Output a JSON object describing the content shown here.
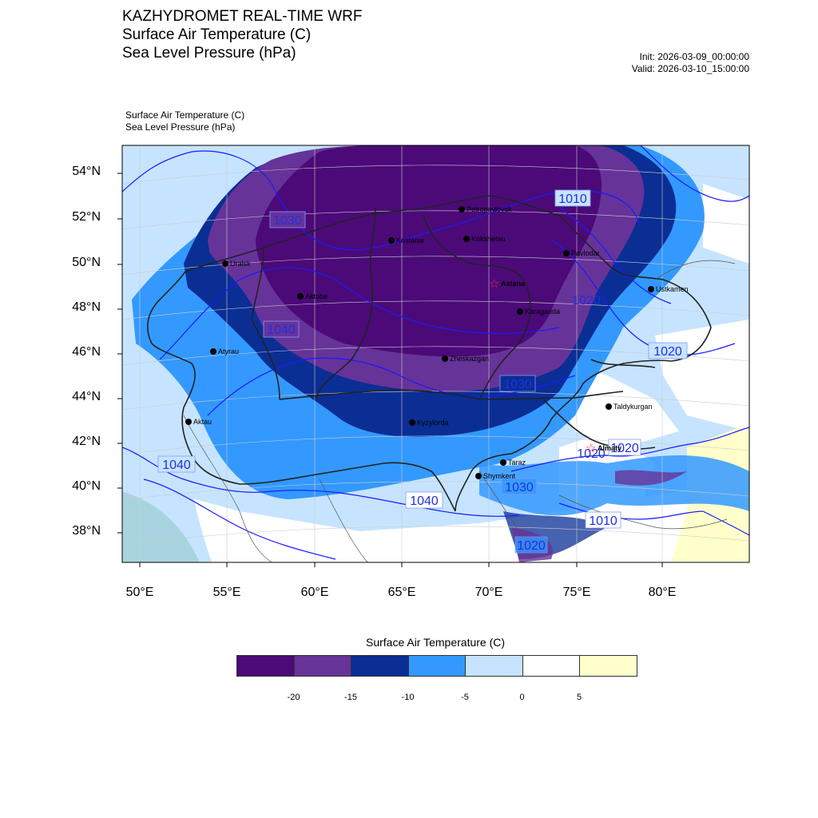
{
  "titles": [
    "KAZHYDROMET REAL-TIME WRF",
    "Surface Air Temperature  (C)",
    "Sea Level Pressure  (hPa)"
  ],
  "init": "Init: 2026-03-09_00:00:00",
  "valid": "Valid: 2026-03-10_15:00:00",
  "subtitles": [
    "Surface Air Temperature   (C)",
    "Sea Level Pressure   (hPa)"
  ],
  "lat_labels": [
    "54°N",
    "52°N",
    "50°N",
    "48°N",
    "46°N",
    "44°N",
    "42°N",
    "40°N",
    "38°N"
  ],
  "lon_labels": [
    "50°E",
    "55°E",
    "60°E",
    "65°E",
    "70°E",
    "75°E",
    "80°E"
  ],
  "cities": [
    {
      "name": "Petropavlovsk",
      "capital": false
    },
    {
      "name": "Kostanai",
      "capital": false
    },
    {
      "name": "Kokshetau",
      "capital": false
    },
    {
      "name": "Uralsk",
      "capital": false
    },
    {
      "name": "Pavlodar",
      "capital": false
    },
    {
      "name": "Astana",
      "capital": true
    },
    {
      "name": "Aktobe",
      "capital": false
    },
    {
      "name": "Ustkamen",
      "capital": false
    },
    {
      "name": "Karaganda",
      "capital": false
    },
    {
      "name": "Atyrau",
      "capital": false
    },
    {
      "name": "Zheskazgan",
      "capital": false
    },
    {
      "name": "Taldykurgan",
      "capital": false
    },
    {
      "name": "Aktau",
      "capital": false
    },
    {
      "name": "Kyzylorda",
      "capital": false
    },
    {
      "name": "Almaty",
      "capital": true
    },
    {
      "name": "Taraz",
      "capital": false
    },
    {
      "name": "Shymkent",
      "capital": false
    }
  ],
  "contour_labels": [
    "1010",
    "1030",
    "1040",
    "1020",
    "1030",
    "1040",
    "1040",
    "1030",
    "1020",
    "1010",
    "1020",
    "1020",
    "1020"
  ],
  "colorbar": {
    "title": "Surface Air Temperature (C)",
    "colors": [
      "#4b0a78",
      "#663399",
      "#0a2e94",
      "#3399ff",
      "#c6e4ff",
      "#ffffff",
      "#ffffcc"
    ],
    "labels": [
      "-20",
      "-15",
      "-10",
      "-5",
      "0",
      "5"
    ]
  }
}
